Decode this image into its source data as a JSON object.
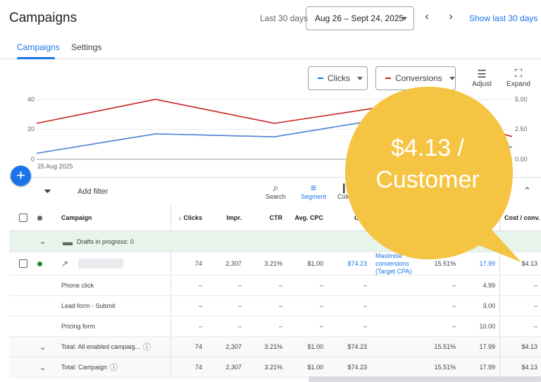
{
  "header": {
    "title": "Campaigns",
    "range_label": "Last 30 days",
    "date_range": "Aug 26 – Sept 24, 2025",
    "show_last": "Show last 30 days"
  },
  "tabs": [
    {
      "label": "Campaigns"
    },
    {
      "label": "Settings"
    }
  ],
  "chart_controls": {
    "metric1": {
      "label": "Clicks",
      "color": "#1a73e8"
    },
    "metric2": {
      "label": "Conversions",
      "color": "#c5221f"
    },
    "adjust": "Adjust",
    "expand": "Expand"
  },
  "chart_data": {
    "type": "line",
    "y_left_ticks": [
      "40",
      "20",
      "0"
    ],
    "y_right_ticks": [
      "5.00",
      "2.50",
      "0.00"
    ],
    "y_left_range": [
      0,
      40
    ],
    "y_right_range": [
      0,
      5
    ],
    "x_start_label": "25 Aug 2025",
    "series": [
      {
        "name": "Clicks",
        "color": "#4a7fd4",
        "axis": "left",
        "values": [
          4,
          17,
          15,
          28,
          8
        ]
      },
      {
        "name": "Conversions",
        "color": "#c5221f",
        "axis": "right",
        "values": [
          3.0,
          5.0,
          3.0,
          4.5,
          1.9
        ]
      }
    ]
  },
  "filterbar": {
    "add_filter": "Add filter",
    "search": "Search",
    "segment": "Segment",
    "columns": "Colu"
  },
  "table": {
    "headers": {
      "campaign": "Campaign",
      "clicks": "↓ Clicks",
      "impr": "Impr.",
      "ctr": "CTR",
      "avg_cpc": "Avg. CPC",
      "cost": "Co",
      "cost_conv": "Cost / conv."
    },
    "drafts": "Drafts in progress: 0",
    "campaign_row": {
      "clicks": "74",
      "impr": "2,307",
      "ctr": "3.21%",
      "avg_cpc": "$1.00",
      "cost": "$74.23",
      "bid_strategy": "Maximise conversions (Target CPA)",
      "conv_rate": "15.51%",
      "conversions": "17.99",
      "cost_conv": "$4.13"
    },
    "sub_rows": [
      {
        "name": "Phone click",
        "conversions": "4.99"
      },
      {
        "name": "Lead form - Submit",
        "conversions": "3.00"
      },
      {
        "name": "Pricing form",
        "conversions": "10.00"
      }
    ],
    "dash": "–",
    "totals": [
      {
        "label": "Total: All enabled campaig...",
        "clicks": "74",
        "impr": "2,307",
        "ctr": "3.21%",
        "avg_cpc": "$1.00",
        "cost": "$74.23",
        "conv_rate": "15.51%",
        "conversions": "17.99",
        "cost_conv": "$4.13"
      },
      {
        "label": "Total: Campaign",
        "clicks": "74",
        "impr": "2,307",
        "ctr": "3.21%",
        "avg_cpc": "$1.00",
        "cost": "$74.23",
        "conv_rate": "15.51%",
        "conversions": "17.99",
        "cost_conv": "$4.13"
      }
    ]
  },
  "callout": {
    "line1": "$4.13 /",
    "line2": "Customer",
    "color": "#f6c443"
  }
}
